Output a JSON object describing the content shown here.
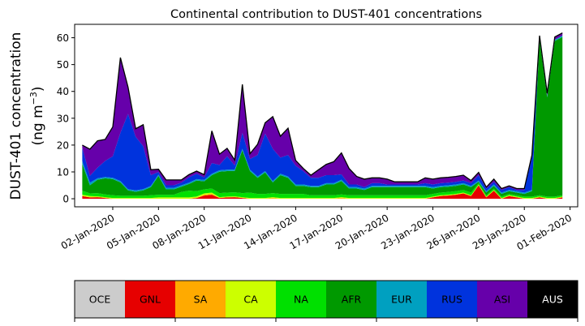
{
  "chart_data": {
    "type": "area",
    "stacked": true,
    "title": "Continental contribution to DUST-401 concentrations",
    "ylabel_line1": "DUST-401 concentration",
    "ylabel_unit_base": "(ng m",
    "ylabel_unit_sup": "−3",
    "ylabel_unit_end": ")",
    "xlabel": "",
    "x_axis": "date",
    "x_start": "2019-12-31",
    "x_step_days": 0.5,
    "ylim": [
      -3,
      65
    ],
    "xlim": [
      "2019-12-30T12:00",
      "2020-02-01T12:00"
    ],
    "yticks": [
      0,
      10,
      20,
      30,
      40,
      50,
      60
    ],
    "xticks": [
      {
        "date": "2020-01-02",
        "label": "02-Jan-2020"
      },
      {
        "date": "2020-01-05",
        "label": "05-Jan-2020"
      },
      {
        "date": "2020-01-08",
        "label": "08-Jan-2020"
      },
      {
        "date": "2020-01-11",
        "label": "11-Jan-2020"
      },
      {
        "date": "2020-01-14",
        "label": "14-Jan-2020"
      },
      {
        "date": "2020-01-17",
        "label": "17-Jan-2020"
      },
      {
        "date": "2020-01-20",
        "label": "20-Jan-2020"
      },
      {
        "date": "2020-01-23",
        "label": "23-Jan-2020"
      },
      {
        "date": "2020-01-26",
        "label": "26-Jan-2020"
      },
      {
        "date": "2020-01-29",
        "label": "29-Jan-2020"
      },
      {
        "date": "2020-02-01",
        "label": "01-Feb-2020"
      }
    ],
    "grid": false,
    "legend_position": "bottom colorbar",
    "series": [
      {
        "name": "OCE",
        "color": "#cccccc",
        "values": [
          0,
          0,
          0,
          0,
          0,
          0,
          0,
          0,
          0,
          0,
          0,
          0,
          0,
          0,
          0,
          0,
          0,
          0,
          0,
          0,
          0,
          0,
          0,
          0,
          0,
          0,
          0,
          0,
          0,
          0,
          0,
          0,
          0,
          0,
          0,
          0,
          0,
          0,
          0,
          0,
          0,
          0,
          0,
          0,
          0,
          0,
          0,
          0,
          0,
          0,
          0,
          0,
          0,
          0,
          0,
          0,
          0,
          0,
          0,
          0,
          0,
          0,
          0,
          0
        ]
      },
      {
        "name": "GNL",
        "color": "#e60000",
        "values": [
          1,
          0.5,
          0.6,
          0.3,
          0,
          0,
          0,
          0,
          0,
          0,
          0,
          0,
          0,
          0,
          0,
          0.3,
          1.2,
          1.5,
          0.3,
          0.5,
          0.6,
          0.3,
          0,
          0,
          0,
          0,
          0,
          0,
          0,
          0,
          0,
          0,
          0,
          0,
          0,
          0,
          0,
          0,
          0,
          0,
          0,
          0,
          0,
          0,
          0,
          0,
          0.5,
          1,
          1.2,
          1.5,
          2,
          1,
          5,
          0.5,
          3,
          0,
          1,
          0.5,
          0,
          0,
          0.5,
          0,
          0,
          0.5
        ]
      },
      {
        "name": "SA",
        "color": "#ffaa00",
        "values": [
          0,
          0,
          0,
          0,
          0,
          0,
          0,
          0,
          0,
          0,
          0,
          0,
          0,
          0,
          0,
          0,
          0.3,
          0.3,
          0,
          0,
          0,
          0,
          0,
          0,
          0,
          0.3,
          0,
          0,
          0,
          0,
          0,
          0,
          0,
          0,
          0.3,
          0,
          0,
          0,
          0,
          0,
          0,
          0,
          0,
          0,
          0,
          0,
          0,
          0,
          0,
          0,
          0,
          0,
          0,
          0,
          0,
          0,
          0,
          0,
          0,
          0,
          0,
          0,
          0,
          0
        ]
      },
      {
        "name": "CA",
        "color": "#ccff00",
        "values": [
          0.5,
          0.5,
          0.3,
          0.3,
          0.3,
          0.3,
          0.3,
          0.3,
          0.3,
          0.3,
          0.5,
          0.5,
          0.5,
          0.5,
          0.5,
          0.5,
          0.5,
          0.5,
          0.3,
          0.3,
          0.3,
          0.3,
          0.3,
          0.3,
          0.3,
          0.3,
          0.3,
          0.3,
          0.3,
          0.3,
          0.3,
          0.3,
          0.3,
          0.3,
          0.3,
          0.3,
          0.3,
          0.3,
          0.3,
          0.3,
          0.3,
          0.3,
          0.3,
          0.3,
          0.3,
          0.3,
          0.3,
          0.3,
          0.3,
          0.3,
          0.3,
          0.3,
          0.3,
          0.3,
          0.3,
          0.3,
          0.3,
          0.3,
          0.3,
          0.3,
          0.3,
          0.3,
          0.3,
          0.3
        ]
      },
      {
        "name": "NA",
        "color": "#00e000",
        "values": [
          1.5,
          1,
          1.2,
          1,
          1,
          0.8,
          0.8,
          0.8,
          0.8,
          1,
          1,
          1,
          1,
          2,
          2.5,
          2,
          1.5,
          1.5,
          1.5,
          1.5,
          1.5,
          1.5,
          2,
          1.5,
          1.5,
          1.5,
          1.5,
          1.5,
          1.5,
          1.5,
          1,
          1,
          1,
          1,
          1,
          1,
          1,
          1,
          1,
          1,
          1,
          1,
          1,
          1,
          1,
          1,
          1,
          1,
          1,
          1,
          1,
          1,
          0.5,
          0.5,
          0.5,
          0.5,
          0.5,
          0.5,
          0.5,
          0.5,
          0.5,
          0.5,
          0.5,
          0.5
        ]
      },
      {
        "name": "AFR",
        "color": "#009900",
        "values": [
          10,
          3,
          5,
          6,
          6,
          5,
          2,
          1.5,
          2,
          3,
          7,
          2,
          2,
          2,
          2.5,
          4,
          3,
          5,
          8,
          8,
          8,
          16,
          8,
          6,
          8,
          4,
          7,
          6,
          3,
          3,
          3,
          3,
          4,
          4,
          5,
          2.5,
          2.5,
          2,
          3,
          3,
          3,
          3,
          3,
          3,
          3,
          3,
          2,
          2,
          2,
          2,
          2,
          2,
          0.5,
          1,
          1,
          1,
          1,
          1,
          1,
          2,
          58,
          37,
          58,
          59
        ]
      },
      {
        "name": "EUR",
        "color": "#00a0c0",
        "values": [
          1,
          1,
          0.5,
          0.5,
          0.5,
          0.5,
          0.5,
          0.5,
          0.5,
          0.5,
          0.5,
          0.5,
          0.5,
          0.5,
          0.5,
          0.5,
          0.5,
          0.5,
          0.5,
          0.5,
          0.5,
          0.5,
          0.5,
          0.5,
          0.5,
          0.5,
          0.5,
          0.5,
          0.5,
          0.5,
          0.5,
          0.5,
          0.5,
          0.5,
          0.5,
          0.5,
          0.5,
          0.5,
          0.5,
          0.5,
          0.5,
          0.5,
          0.5,
          0.5,
          0.5,
          0.5,
          0.5,
          0.5,
          0.5,
          0.5,
          0.5,
          0.5,
          0.5,
          0.5,
          0.5,
          0.5,
          0.5,
          0.5,
          0.5,
          0.5,
          0.5,
          0.5,
          0.5,
          0.5
        ]
      },
      {
        "name": "RUS",
        "color": "#0033dd",
        "values": [
          5,
          2.5,
          4,
          6,
          8,
          18,
          28,
          20,
          16,
          4,
          1,
          1,
          1,
          1,
          2,
          2,
          1,
          4,
          2,
          5,
          1.5,
          6,
          4,
          8,
          14,
          12,
          6,
          8,
          7,
          5,
          3,
          3,
          3,
          3,
          2,
          1,
          1,
          0.5,
          1,
          1,
          0.5,
          0.5,
          0.5,
          0.5,
          0.5,
          1,
          1,
          1,
          1,
          1,
          1,
          1,
          2,
          1,
          1,
          1,
          1,
          0.5,
          1,
          12,
          0,
          0,
          0,
          0
        ]
      },
      {
        "name": "ASI",
        "color": "#6600aa",
        "values": [
          1,
          10,
          10,
          8,
          11,
          28,
          10,
          3,
          8,
          2,
          1,
          2,
          2,
          1,
          1,
          1,
          1,
          12,
          4,
          3,
          2,
          18,
          2,
          4,
          4,
          12,
          8,
          10,
          2,
          1,
          1,
          3,
          4,
          5,
          8,
          6,
          3,
          3,
          2,
          2,
          2,
          1,
          1,
          1,
          1,
          2,
          2,
          2,
          2,
          2,
          2,
          1,
          1,
          0.5,
          1,
          0.5,
          0.5,
          0.5,
          0.5,
          1,
          1,
          1,
          1,
          1
        ]
      },
      {
        "name": "AUS",
        "color": "#000000",
        "values": [
          0,
          0,
          0,
          0,
          0,
          0,
          0,
          0,
          0,
          0,
          0,
          0,
          0,
          0,
          0,
          0,
          0,
          0,
          0,
          0,
          0,
          0,
          0,
          0,
          0,
          0,
          0,
          0,
          0,
          0,
          0,
          0,
          0,
          0,
          0,
          0,
          0,
          0,
          0,
          0,
          0,
          0,
          0,
          0,
          0,
          0,
          0,
          0,
          0,
          0,
          0,
          0,
          0,
          0,
          0,
          0,
          0,
          0,
          0,
          0,
          0,
          0,
          0,
          0
        ]
      }
    ]
  }
}
